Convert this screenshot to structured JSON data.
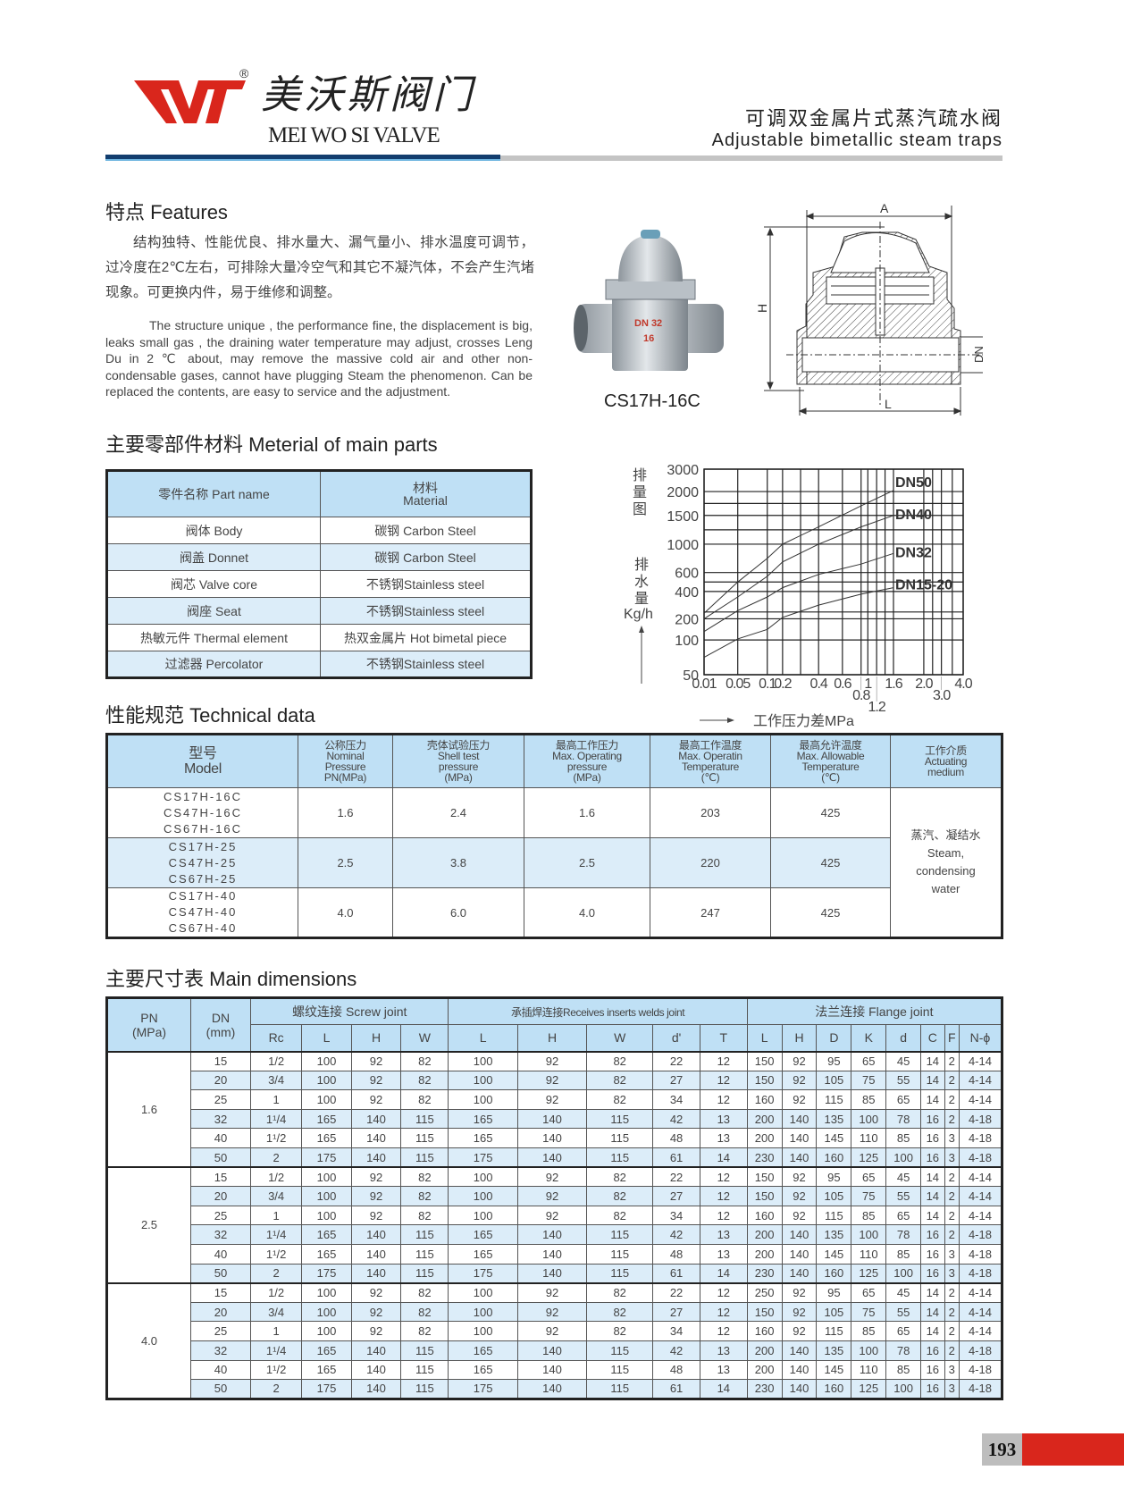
{
  "header": {
    "brand_cn": "美沃斯阀门",
    "brand_en": "MEI WO SI VALVE",
    "registered": "®",
    "logo_text": "WV",
    "title_cn": "可调双金属片式蒸汽疏水阀",
    "title_en": "Adjustable bimetallic steam traps",
    "colors": {
      "logo": "#d9261c",
      "bar_blue": "#123d6e",
      "bar_gray": "#c4c4c4"
    }
  },
  "features": {
    "heading": "特点 Features",
    "text_cn": "结构独特、性能优良、排水量大、漏气量小、排水温度可调节，过冷度在2℃左右，可排除大量冷空气和其它不凝汽体，不会产生汽堵现象。可更换内件，易于维修和调整。",
    "text_en": "The structure unique , the performance fine, the displacement is big, leaks small gas , the draining water temperature may adjust, crosses Leng Du in 2 ℃ about, may remove the massive cold air and other non-condensable gases, cannot have plugging Steam  the phenomenon. Can be replaced  the contents, are easy to service and the adjustment."
  },
  "product": {
    "model": "CS17H-16C",
    "photo_marking": [
      "DN 32",
      "16"
    ],
    "drawing_labels": {
      "A": "A",
      "H": "H",
      "L": "L",
      "DN": "DN"
    }
  },
  "materials": {
    "heading": "主要零部件材料 Meterial of main parts",
    "col_part": "零件名称  Part name",
    "col_material_cn": "材料",
    "col_material_en": "Material",
    "rows": [
      {
        "part": "阀体  Body",
        "material": "碳钢  Carbon Steel"
      },
      {
        "part": "阀盖  Donnet",
        "material": "碳钢  Carbon Steel"
      },
      {
        "part": "阀芯  Valve core",
        "material": "不锈钢Stainless steel"
      },
      {
        "part": "阀座  Seat",
        "material": "不锈钢Stainless steel"
      },
      {
        "part": "热敏元件  Thermal element",
        "material": "热双金属片  Hot bimetal piece"
      },
      {
        "part": "过滤器  Percolator",
        "material": "不锈钢Stainless steel"
      }
    ]
  },
  "chart_data": {
    "type": "line",
    "title": "排量图",
    "ylabel": "排水量 Kg/h",
    "xlabel": "工作压力差MPa",
    "x_ticks": [
      0.01,
      0.05,
      0.1,
      0.2,
      0.4,
      0.6,
      0.8,
      1,
      1.2,
      1.6,
      2.0,
      3.0,
      4.0
    ],
    "x_tick_labels": [
      "0.01",
      "0.05",
      "0.1",
      "0.2",
      "0.4",
      "0.6",
      "0.8",
      "1",
      "1.2",
      "1.6",
      "2.0",
      "3.0",
      "4.0"
    ],
    "y_ticks": [
      50,
      100,
      200,
      400,
      600,
      1000,
      1500,
      2000,
      3000
    ],
    "xlim": [
      0.01,
      4.0
    ],
    "ylim": [
      50,
      3000
    ],
    "grid": true,
    "series": [
      {
        "name": "DN50",
        "x": [
          0.01,
          0.05,
          0.1,
          0.2,
          0.4,
          0.8,
          1.6
        ],
        "y": [
          240,
          500,
          800,
          1000,
          1300,
          1700,
          2050
        ]
      },
      {
        "name": "DN40",
        "x": [
          0.01,
          0.05,
          0.1,
          0.2,
          0.4,
          0.8,
          1.6
        ],
        "y": [
          200,
          360,
          560,
          750,
          1000,
          1300,
          1500
        ]
      },
      {
        "name": "DN32",
        "x": [
          0.01,
          0.05,
          0.1,
          0.2,
          0.4,
          0.8,
          1.6
        ],
        "y": [
          140,
          260,
          360,
          440,
          580,
          720,
          870
        ]
      },
      {
        "name": "DN15-20",
        "x": [
          0.01,
          0.05,
          0.1,
          0.2,
          0.4,
          0.8,
          1.6
        ],
        "y": [
          75,
          105,
          150,
          210,
          300,
          380,
          440
        ]
      }
    ]
  },
  "technical": {
    "heading": "性能规范 Technical data",
    "columns": [
      [
        "型号",
        "Model"
      ],
      [
        "公称压力",
        "Nominal",
        "Pressure",
        "PN(MPa)"
      ],
      [
        "壳体试验压力",
        "Shell test",
        "pressure",
        "(MPa)"
      ],
      [
        "最高工作压力",
        "Max. Operating",
        "pressure",
        "(MPa)"
      ],
      [
        "最高工作温度",
        "Max. Operatin",
        "Temperature",
        "(℃)"
      ],
      [
        "最高允许温度",
        "Max. Allowable",
        "Temperature",
        "(℃)"
      ],
      [
        "工作介质",
        "Actuating",
        "medium"
      ]
    ],
    "rows": [
      {
        "models": [
          "CS17H-16C",
          "CS47H-16C",
          "CS67H-16C"
        ],
        "pn": "1.6",
        "shell": "2.4",
        "max_op": "1.6",
        "max_temp": "203",
        "allow_temp": "425"
      },
      {
        "models": [
          "CS17H-25",
          "CS47H-25",
          "CS67H-25"
        ],
        "pn": "2.5",
        "shell": "3.8",
        "max_op": "2.5",
        "max_temp": "220",
        "allow_temp": "425"
      },
      {
        "models": [
          "CS17H-40",
          "CS47H-40",
          "CS67H-40"
        ],
        "pn": "4.0",
        "shell": "6.0",
        "max_op": "4.0",
        "max_temp": "247",
        "allow_temp": "425"
      }
    ],
    "medium": [
      "蒸汽、凝结水",
      "Steam,",
      "condensing",
      "water"
    ]
  },
  "dimensions": {
    "heading": "主要尺寸表 Main dimensions",
    "pn_header": [
      "PN",
      "(MPa)"
    ],
    "dn_header": [
      "DN",
      "(mm)"
    ],
    "groups": [
      "螺纹连接  Screw joint",
      "承插焊连接Receives inserts welds joint",
      "法兰连接  Flange joint"
    ],
    "subcolumns": [
      "Rc",
      "L",
      "H",
      "W",
      "L",
      "H",
      "W",
      "d'",
      "T",
      "L",
      "H",
      "D",
      "K",
      "d",
      "C",
      "F",
      "N-ϕ"
    ],
    "blocks": [
      {
        "pn": "1.6",
        "rows": [
          [
            "15",
            "1/2",
            "100",
            "92",
            "82",
            "100",
            "92",
            "82",
            "22",
            "12",
            "150",
            "92",
            "95",
            "65",
            "45",
            "14",
            "2",
            "4-14"
          ],
          [
            "20",
            "3/4",
            "100",
            "92",
            "82",
            "100",
            "92",
            "82",
            "27",
            "12",
            "150",
            "92",
            "105",
            "75",
            "55",
            "14",
            "2",
            "4-14"
          ],
          [
            "25",
            "1",
            "100",
            "92",
            "82",
            "100",
            "92",
            "82",
            "34",
            "12",
            "160",
            "92",
            "115",
            "85",
            "65",
            "14",
            "2",
            "4-14"
          ],
          [
            "32",
            "1¹/4",
            "165",
            "140",
            "115",
            "165",
            "140",
            "115",
            "42",
            "13",
            "200",
            "140",
            "135",
            "100",
            "78",
            "16",
            "2",
            "4-18"
          ],
          [
            "40",
            "1¹/2",
            "165",
            "140",
            "115",
            "165",
            "140",
            "115",
            "48",
            "13",
            "200",
            "140",
            "145",
            "110",
            "85",
            "16",
            "3",
            "4-18"
          ],
          [
            "50",
            "2",
            "175",
            "140",
            "115",
            "175",
            "140",
            "115",
            "61",
            "14",
            "230",
            "140",
            "160",
            "125",
            "100",
            "16",
            "3",
            "4-18"
          ]
        ]
      },
      {
        "pn": "2.5",
        "rows": [
          [
            "15",
            "1/2",
            "100",
            "92",
            "82",
            "100",
            "92",
            "82",
            "22",
            "12",
            "150",
            "92",
            "95",
            "65",
            "45",
            "14",
            "2",
            "4-14"
          ],
          [
            "20",
            "3/4",
            "100",
            "92",
            "82",
            "100",
            "92",
            "82",
            "27",
            "12",
            "150",
            "92",
            "105",
            "75",
            "55",
            "14",
            "2",
            "4-14"
          ],
          [
            "25",
            "1",
            "100",
            "92",
            "82",
            "100",
            "92",
            "82",
            "34",
            "12",
            "160",
            "92",
            "115",
            "85",
            "65",
            "14",
            "2",
            "4-14"
          ],
          [
            "32",
            "1¹/4",
            "165",
            "140",
            "115",
            "165",
            "140",
            "115",
            "42",
            "13",
            "200",
            "140",
            "135",
            "100",
            "78",
            "16",
            "2",
            "4-18"
          ],
          [
            "40",
            "1¹/2",
            "165",
            "140",
            "115",
            "165",
            "140",
            "115",
            "48",
            "13",
            "200",
            "140",
            "145",
            "110",
            "85",
            "16",
            "3",
            "4-18"
          ],
          [
            "50",
            "2",
            "175",
            "140",
            "115",
            "175",
            "140",
            "115",
            "61",
            "14",
            "230",
            "140",
            "160",
            "125",
            "100",
            "16",
            "3",
            "4-18"
          ]
        ]
      },
      {
        "pn": "4.0",
        "rows": [
          [
            "15",
            "1/2",
            "100",
            "92",
            "82",
            "100",
            "92",
            "82",
            "22",
            "12",
            "250",
            "92",
            "95",
            "65",
            "45",
            "14",
            "2",
            "4-14"
          ],
          [
            "20",
            "3/4",
            "100",
            "92",
            "82",
            "100",
            "92",
            "82",
            "27",
            "12",
            "150",
            "92",
            "105",
            "75",
            "55",
            "14",
            "2",
            "4-14"
          ],
          [
            "25",
            "1",
            "100",
            "92",
            "82",
            "100",
            "92",
            "82",
            "34",
            "12",
            "160",
            "92",
            "115",
            "85",
            "65",
            "14",
            "2",
            "4-14"
          ],
          [
            "32",
            "1¹/4",
            "165",
            "140",
            "115",
            "165",
            "140",
            "115",
            "42",
            "13",
            "200",
            "140",
            "135",
            "100",
            "78",
            "16",
            "2",
            "4-18"
          ],
          [
            "40",
            "1¹/2",
            "165",
            "140",
            "115",
            "165",
            "140",
            "115",
            "48",
            "13",
            "200",
            "140",
            "145",
            "110",
            "85",
            "16",
            "3",
            "4-18"
          ],
          [
            "50",
            "2",
            "175",
            "140",
            "115",
            "175",
            "140",
            "115",
            "61",
            "14",
            "230",
            "140",
            "160",
            "125",
            "100",
            "16",
            "3",
            "4-18"
          ]
        ]
      }
    ]
  },
  "footer": {
    "page_number": "193"
  }
}
